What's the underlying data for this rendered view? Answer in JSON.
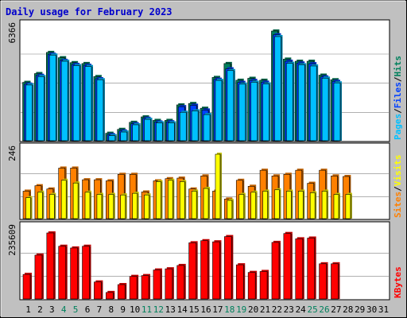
{
  "title": "Daily usage for February 2023",
  "colors": {
    "background": "#c0c0c0",
    "panel": "#ffffff",
    "grid": "#808080",
    "title": "#0000cc",
    "hits": "#00805c",
    "files": "#0040ff",
    "pages": "#00c0ff",
    "sites": "#ff8000",
    "visits": "#ffff00",
    "kbytes": "#ff0000",
    "weekend": "#00805c",
    "weekday": "#000000"
  },
  "chart_data": [
    {
      "type": "bar",
      "panel": "top",
      "scale_label": "6366",
      "ylim": [
        0,
        6366
      ],
      "categories": [
        "1",
        "2",
        "3",
        "4",
        "5",
        "6",
        "7",
        "8",
        "9",
        "10",
        "11",
        "12",
        "13",
        "14",
        "15",
        "16",
        "17",
        "18",
        "19",
        "20",
        "21",
        "22",
        "23",
        "24",
        "25",
        "26",
        "27",
        "28",
        "29",
        "30",
        "31"
      ],
      "series": [
        {
          "name": "Hits",
          "values": [
            3450,
            3950,
            5150,
            4850,
            4570,
            4520,
            3780,
            560,
            780,
            1180,
            1490,
            1290,
            1290,
            2170,
            2250,
            1980,
            3730,
            4520,
            3570,
            3680,
            3570,
            6366,
            4770,
            4650,
            4650,
            3860,
            3600,
            0,
            0,
            0,
            0
          ]
        },
        {
          "name": "Files",
          "values": [
            3350,
            3850,
            5050,
            4700,
            4470,
            4420,
            3660,
            480,
            690,
            1100,
            1410,
            1200,
            1210,
            2070,
            2150,
            1880,
            3630,
            4220,
            3450,
            3560,
            3460,
            6150,
            4650,
            4550,
            4510,
            3760,
            3510,
            0,
            0,
            0,
            0
          ]
        },
        {
          "name": "Pages",
          "values": [
            3300,
            3780,
            5000,
            4650,
            4400,
            4350,
            3600,
            420,
            630,
            1040,
            1350,
            1150,
            1150,
            1750,
            1830,
            1620,
            3560,
            4120,
            3350,
            3460,
            3360,
            6050,
            4530,
            4450,
            4380,
            3690,
            3420,
            0,
            0,
            0,
            0
          ]
        }
      ]
    },
    {
      "type": "bar",
      "panel": "middle",
      "scale_label": "246",
      "ylim": [
        0,
        246
      ],
      "categories": [
        "1",
        "2",
        "3",
        "4",
        "5",
        "6",
        "7",
        "8",
        "9",
        "10",
        "11",
        "12",
        "13",
        "14",
        "15",
        "16",
        "17",
        "18",
        "19",
        "20",
        "21",
        "22",
        "23",
        "24",
        "25",
        "26",
        "27",
        "28",
        "29",
        "30",
        "31"
      ],
      "series": [
        {
          "name": "Sites",
          "values": [
            110,
            130,
            118,
            195,
            195,
            152,
            152,
            148,
            172,
            172,
            107,
            148,
            156,
            158,
            118,
            166,
            110,
            81,
            150,
            128,
            187,
            166,
            172,
            187,
            139,
            187,
            166,
            164,
            0,
            0,
            0
          ]
        },
        {
          "name": "Visits",
          "values": [
            86,
            106,
            98,
            150,
            140,
            106,
            98,
            98,
            96,
            102,
            96,
            145,
            150,
            145,
            110,
            120,
            246,
            76,
            98,
            106,
            110,
            115,
            110,
            110,
            104,
            110,
            98,
            98,
            0,
            0,
            0
          ]
        }
      ]
    },
    {
      "type": "bar",
      "panel": "bottom",
      "scale_label": "235609",
      "ylim": [
        0,
        235609
      ],
      "categories": [
        "1",
        "2",
        "3",
        "4",
        "5",
        "6",
        "7",
        "8",
        "9",
        "10",
        "11",
        "12",
        "13",
        "14",
        "15",
        "16",
        "17",
        "18",
        "19",
        "20",
        "21",
        "22",
        "23",
        "24",
        "25",
        "26",
        "27",
        "28",
        "29",
        "30",
        "31"
      ],
      "series": [
        {
          "name": "KBytes",
          "values": [
            92800,
            159200,
            235609,
            189800,
            183800,
            189800,
            66700,
            30500,
            57600,
            85900,
            88700,
            108000,
            112000,
            123500,
            201700,
            208900,
            205000,
            223100,
            125800,
            99600,
            102900,
            203000,
            233700,
            215400,
            217900,
            129300,
            129300,
            0,
            0,
            0,
            0
          ]
        }
      ]
    }
  ],
  "legend": {
    "top": [
      "Pages",
      "Files",
      "Hits"
    ],
    "middle": [
      "Sites",
      "Visits"
    ],
    "bottom": [
      "KBytes"
    ]
  },
  "weekend_days": [
    "4",
    "5",
    "11",
    "12",
    "18",
    "19",
    "25",
    "26"
  ]
}
